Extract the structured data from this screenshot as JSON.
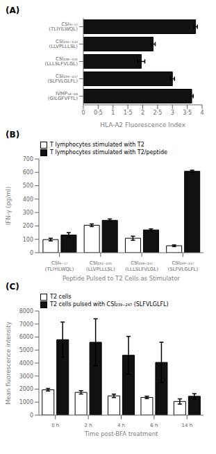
{
  "chart_data": [
    {
      "type": "bar",
      "title": "(A)",
      "orientation": "horizontal",
      "grid": false,
      "categories": [
        "CSI₉₋₁₇ (TLIYILWQL)",
        "CSI₂₃₂₋₂₄₀ (LLVPLLLSL)",
        "CSI₂₃₆₋₂₄₅ (LLLSLFVLGL)",
        "CSI₂₃₉₋₂₄₇ (SLFVLGLFL)",
        "IVMP₅₈₋₆₆ (GILGFVFTL)"
      ],
      "values": [
        3.78,
        2.35,
        1.95,
        3.0,
        3.65
      ],
      "errors": [
        0.06,
        0.07,
        0.12,
        0.07,
        0.05
      ],
      "color": "#111111",
      "xlabel": "HLA-A2 Fluorescence Index",
      "xlim": [
        0,
        4
      ],
      "xticks": [
        0,
        {
          "value": 0.5,
          "label": "0·5"
        },
        1,
        {
          "value": 1.5,
          "label": "1·5"
        },
        2,
        {
          "value": 2.5,
          "label": "2·5"
        },
        3,
        {
          "value": 3.5,
          "label": "3·5"
        },
        4
      ]
    },
    {
      "type": "bar",
      "title": "(B)",
      "grid": false,
      "legend": "upper left",
      "categories": [
        "CSI₉₋₁₇\n(TLIYILWQL)",
        "CSI₂₃₂₋₂₄₀\n(LLVPLLLSL)",
        "CSI₂₃₆₋₂₄₅\n(LLLSLFVLGL)",
        "CSI₂₃₉₋₂₄₇\n(SLFVLGLFL)"
      ],
      "series": [
        {
          "name": "T lymphocytes stimulated with T2",
          "color": "#ffffff",
          "values": [
            98,
            205,
            108,
            52
          ],
          "errors": [
            10,
            10,
            15,
            6
          ]
        },
        {
          "name": "T lymphocytes stimulated with T2/peptide",
          "color": "#111111",
          "values": [
            132,
            242,
            170,
            608
          ],
          "errors": [
            18,
            10,
            8,
            8
          ]
        }
      ],
      "xlabel": "Peptide Pulsed to T2 Cells as Stimulator",
      "ylabel": "IFN-γ (pg/ml)",
      "ylim": [
        0,
        700
      ],
      "yticks": [
        0,
        100,
        200,
        300,
        400,
        500,
        600,
        700
      ]
    },
    {
      "type": "bar",
      "title": "(C)",
      "grid": false,
      "legend": "upper center",
      "categories": [
        "0 h",
        "2 h",
        "4 h",
        "6 h",
        "14 h"
      ],
      "series": [
        {
          "name": "T2 cells",
          "color": "#ffffff",
          "values": [
            1950,
            1750,
            1480,
            1360,
            1050
          ],
          "errors": [
            100,
            130,
            130,
            90,
            200
          ]
        },
        {
          "name": "T2 cells pulsed with CSI₂₃₉₋₂₄₇ (SLFVLGLFL)",
          "color": "#111111",
          "values": [
            5800,
            5600,
            4600,
            4050,
            1450
          ],
          "errors": [
            1350,
            1800,
            1450,
            1550,
            200
          ]
        }
      ],
      "xlabel": "Time post-BFA treatment",
      "ylabel": "Mean fluorescence intensity",
      "ylim": [
        0,
        8000
      ],
      "yticks": [
        0,
        1000,
        2000,
        3000,
        4000,
        5000,
        6000,
        7000,
        8000
      ]
    }
  ]
}
